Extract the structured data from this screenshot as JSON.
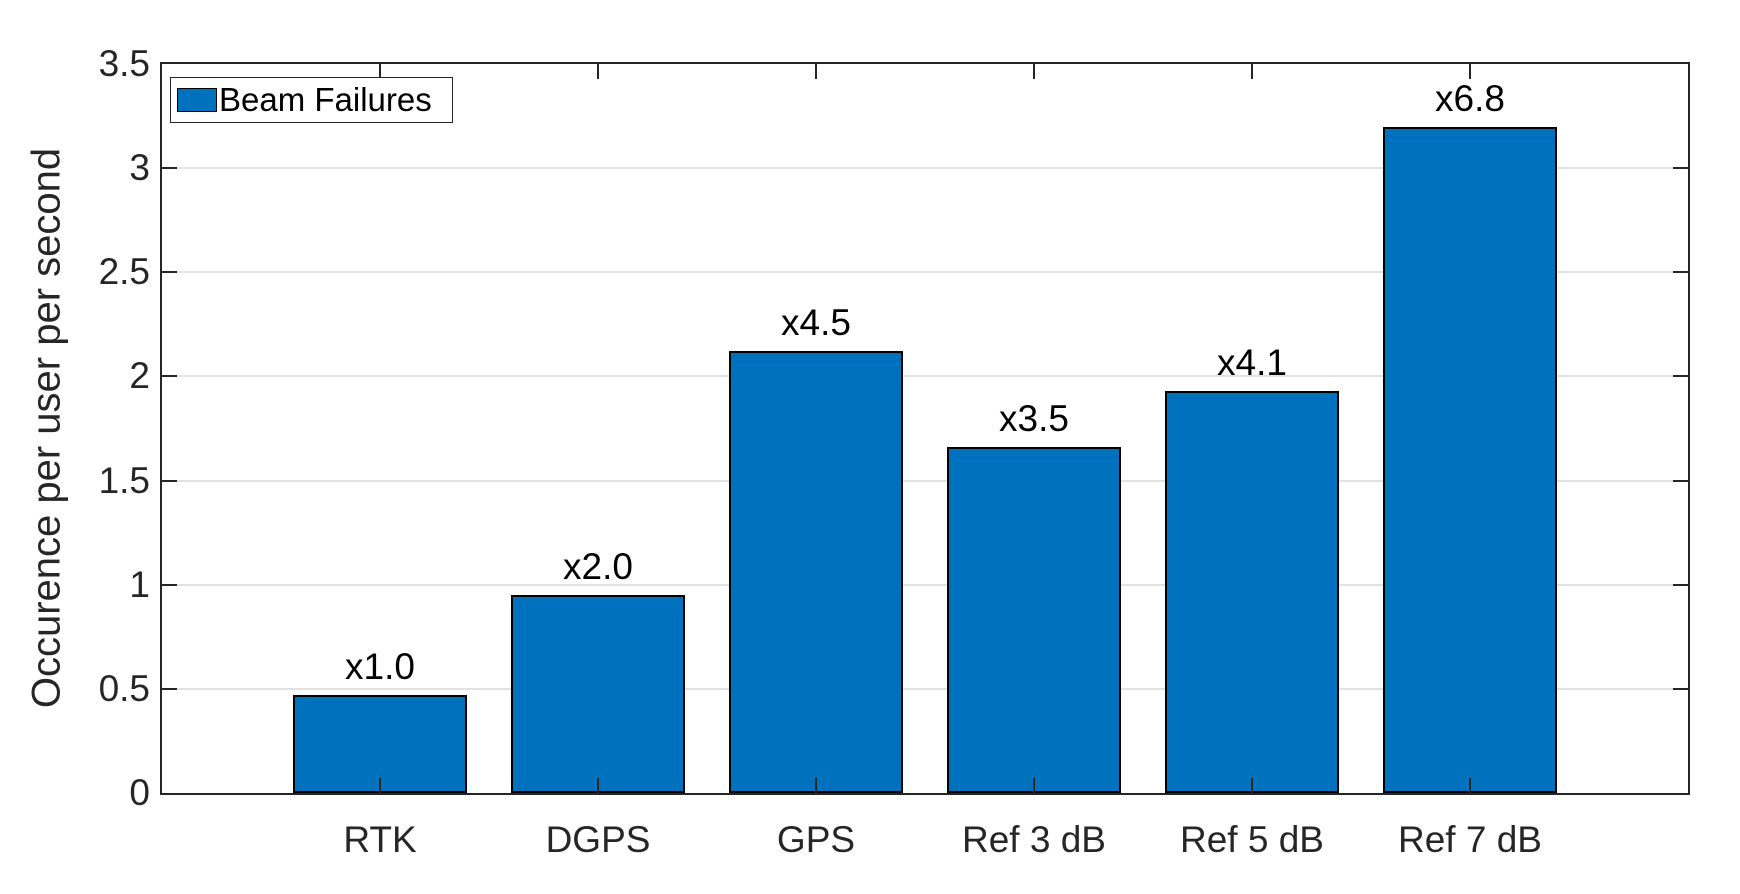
{
  "chart_data": {
    "type": "bar",
    "title": "",
    "xlabel": "",
    "ylabel": "Occurence per user per second",
    "categories": [
      "RTK",
      "DGPS",
      "GPS",
      "Ref 3 dB",
      "Ref 5 dB",
      "Ref 7 dB"
    ],
    "values": [
      0.47,
      0.95,
      2.12,
      1.66,
      1.93,
      3.2
    ],
    "bar_labels": [
      "x1.0",
      "x2.0",
      "x4.5",
      "x3.5",
      "x4.1",
      "x6.8"
    ],
    "ylim": [
      0,
      3.5
    ],
    "yticks": [
      0,
      0.5,
      1,
      1.5,
      2,
      2.5,
      3,
      3.5
    ],
    "ytick_labels": [
      "0",
      "0.5",
      "1",
      "1.5",
      "2",
      "2.5",
      "3",
      "3.5"
    ],
    "grid": "horizontal",
    "grid_on": true,
    "bar_width_fraction": 0.8,
    "bar_color": "#0072BD",
    "bar_edge_color": "#000000",
    "legend": {
      "position": "top-left",
      "entries": [
        "Beam Failures"
      ]
    }
  }
}
